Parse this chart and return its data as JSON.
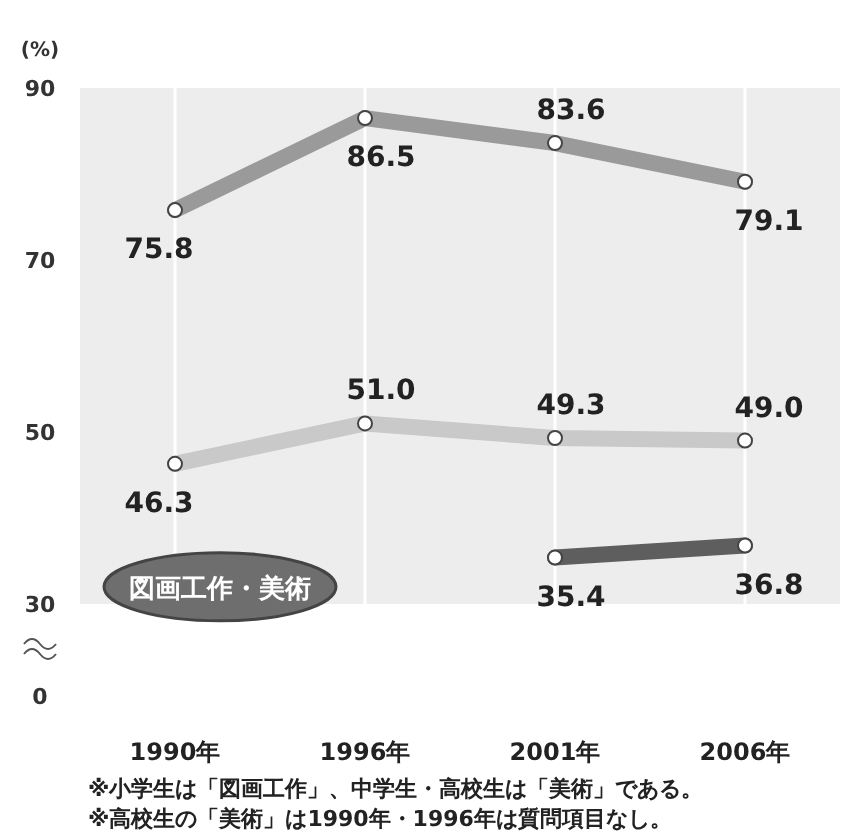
{
  "chart_data": {
    "type": "line",
    "title": "図画工作・美術",
    "ylabel": "(%)",
    "categories": [
      "1990年",
      "1996年",
      "2001年",
      "2006年"
    ],
    "series": [
      {
        "color": "#9a9a9a",
        "values": [
          75.8,
          86.5,
          83.6,
          79.1
        ],
        "value_labels": [
          "75.8",
          "86.5",
          "83.6",
          "79.1"
        ]
      },
      {
        "color": "#c9c9c9",
        "values": [
          46.3,
          51.0,
          49.3,
          49.0
        ],
        "value_labels": [
          "46.3",
          "51.0",
          "49.3",
          "49.0"
        ]
      },
      {
        "color": "#5e5e5e",
        "values": [
          null,
          null,
          35.4,
          36.8
        ],
        "value_labels": [
          null,
          null,
          "35.4",
          "36.8"
        ]
      }
    ],
    "ylim": [
      30,
      90
    ],
    "yticks": [
      30,
      50,
      70,
      90
    ],
    "grid": "x",
    "marker": "circle",
    "line_style": "solid",
    "annotations": [
      "0",
      "※小学生は「図画工作」、中学生・高校生は「美術」である。",
      "※高校生の「美術」は1990年・1996年は質問項目なし。"
    ]
  }
}
